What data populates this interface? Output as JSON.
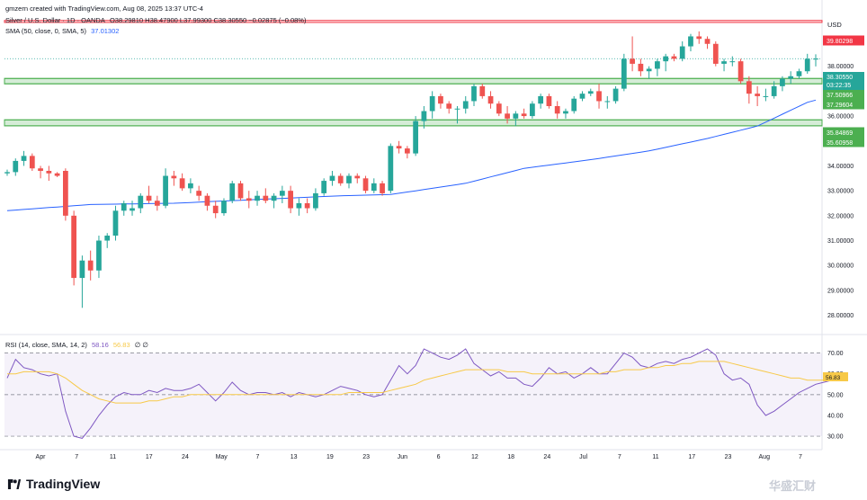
{
  "header": {
    "credit": "gmzern created with TradingView.com, Aug 08, 2025 13:37 UTC-4",
    "symbol": "Silver / U.S. Dollar · 1D · OANDA",
    "ohlc": "O38.29810 H38.47900 L37.99300 C38.30550 −0.02875 (−0.08%)",
    "sma": "SMA (50, close, 0, SMA, 5)",
    "sma_value": "37.01302",
    "rsi": "RSI (14, close, SMA, 14, 2)",
    "rsi_value": "58.16",
    "rsi_ma_value": "56.83",
    "rsi_extra": "∅ ∅"
  },
  "brand": {
    "name": "TradingView",
    "watermark": "华盛汇财"
  },
  "colors": {
    "up": "#26a69a",
    "down": "#ef5350",
    "sma": "#2962ff",
    "rsi": "#7e57c2",
    "rsi_ma": "#f7c948",
    "resistance": "#f23645",
    "support": "#4caf50"
  },
  "chart_data": [
    {
      "type": "candlestick",
      "currency": "USD",
      "ylim": [
        27.3,
        40.3
      ],
      "y_ticks": [
        "39.00000",
        "38.00000",
        "36.00000",
        "35.00000",
        "34.00000",
        "33.00000",
        "32.00000",
        "31.00000",
        "30.00000",
        "29.00000",
        "28.00000"
      ],
      "x_ticks": [
        "Apr",
        "7",
        "11",
        "17",
        "24",
        "May",
        "7",
        "13",
        "19",
        "23",
        "Jun",
        "6",
        "12",
        "18",
        "24",
        "Jul",
        "7",
        "11",
        "17",
        "23",
        "Aug",
        "7"
      ],
      "levels": [
        {
          "label": "39.80298",
          "kind": "resistance",
          "from": 39.76,
          "to": 39.84
        },
        {
          "label": "37.50966",
          "kind": "support",
          "from": 37.29604,
          "to": 37.50966
        },
        {
          "label": "37.29604",
          "kind": "support",
          "from": 37.29604,
          "to": 37.50966
        },
        {
          "label": "35.84869",
          "kind": "support",
          "from": 35.60958,
          "to": 35.84869
        },
        {
          "label": "35.60958",
          "kind": "support",
          "from": 35.60958,
          "to": 35.84869
        }
      ],
      "last_price": "38.30550",
      "countdown": "03:22:35",
      "candles": [
        [
          33.7,
          33.85,
          33.6,
          33.75
        ],
        [
          33.75,
          34.3,
          33.6,
          34.2
        ],
        [
          34.2,
          34.6,
          34.0,
          34.4
        ],
        [
          34.4,
          34.5,
          33.8,
          33.9
        ],
        [
          33.9,
          34.0,
          33.5,
          33.8
        ],
        [
          33.8,
          34.0,
          33.4,
          33.7
        ],
        [
          33.7,
          33.75,
          33.55,
          33.6
        ],
        [
          33.8,
          33.9,
          31.8,
          32.0
        ],
        [
          32.0,
          32.2,
          29.2,
          29.5
        ],
        [
          29.5,
          30.4,
          28.3,
          30.2
        ],
        [
          30.2,
          30.6,
          29.4,
          29.8
        ],
        [
          29.8,
          31.2,
          29.5,
          31.0
        ],
        [
          31.0,
          31.3,
          30.7,
          31.2
        ],
        [
          31.2,
          32.4,
          31.0,
          32.2
        ],
        [
          32.2,
          32.6,
          32.0,
          32.5
        ],
        [
          32.2,
          32.6,
          32.0,
          32.3
        ],
        [
          32.3,
          32.9,
          32.1,
          32.8
        ],
        [
          32.8,
          33.2,
          32.5,
          32.6
        ],
        [
          32.6,
          32.8,
          32.2,
          32.4
        ],
        [
          32.4,
          33.9,
          32.3,
          33.6
        ],
        [
          33.6,
          33.8,
          33.2,
          33.5
        ],
        [
          33.5,
          33.7,
          33.0,
          33.1
        ],
        [
          33.1,
          33.5,
          32.9,
          33.3
        ],
        [
          33.0,
          33.2,
          32.6,
          32.8
        ],
        [
          32.8,
          32.9,
          32.2,
          32.4
        ],
        [
          32.4,
          32.6,
          31.9,
          32.1
        ],
        [
          32.1,
          32.7,
          32.0,
          32.6
        ],
        [
          32.6,
          33.4,
          32.5,
          33.3
        ],
        [
          33.3,
          33.4,
          32.6,
          32.7
        ],
        [
          32.7,
          33.0,
          32.3,
          32.6
        ],
        [
          32.6,
          33.0,
          32.4,
          32.8
        ],
        [
          32.8,
          33.1,
          32.5,
          32.6
        ],
        [
          32.6,
          32.9,
          32.3,
          32.8
        ],
        [
          32.8,
          33.2,
          32.5,
          33.0
        ],
        [
          33.0,
          33.2,
          32.1,
          32.3
        ],
        [
          32.3,
          32.7,
          32.0,
          32.5
        ],
        [
          32.5,
          32.7,
          32.1,
          32.3
        ],
        [
          32.3,
          33.1,
          32.2,
          32.9
        ],
        [
          32.9,
          33.5,
          32.8,
          33.4
        ],
        [
          33.4,
          33.8,
          33.2,
          33.6
        ],
        [
          33.6,
          33.7,
          33.2,
          33.3
        ],
        [
          33.3,
          33.7,
          33.1,
          33.6
        ],
        [
          33.6,
          33.7,
          33.3,
          33.5
        ],
        [
          33.5,
          33.6,
          32.9,
          33.0
        ],
        [
          33.0,
          33.5,
          32.9,
          33.3
        ],
        [
          33.3,
          33.4,
          32.8,
          32.9
        ],
        [
          33.0,
          34.9,
          32.9,
          34.8
        ],
        [
          34.8,
          35.0,
          34.5,
          34.7
        ],
        [
          34.7,
          34.8,
          34.3,
          34.5
        ],
        [
          34.5,
          36.0,
          34.4,
          35.8
        ],
        [
          35.8,
          36.4,
          35.5,
          36.2
        ],
        [
          36.2,
          37.0,
          35.9,
          36.8
        ],
        [
          36.8,
          36.9,
          36.3,
          36.5
        ],
        [
          36.5,
          36.6,
          36.1,
          36.3
        ],
        [
          36.3,
          36.4,
          35.7,
          36.3
        ],
        [
          36.3,
          36.8,
          36.1,
          36.6
        ],
        [
          36.6,
          37.3,
          36.4,
          37.2
        ],
        [
          37.2,
          37.3,
          36.7,
          36.8
        ],
        [
          36.8,
          37.0,
          36.3,
          36.5
        ],
        [
          36.5,
          36.6,
          36.0,
          36.1
        ],
        [
          36.1,
          36.4,
          35.7,
          35.9
        ],
        [
          35.9,
          36.2,
          35.6,
          36.1
        ],
        [
          36.1,
          36.3,
          35.9,
          36.0
        ],
        [
          36.0,
          36.6,
          35.9,
          36.5
        ],
        [
          36.5,
          36.9,
          36.3,
          36.8
        ],
        [
          36.8,
          36.9,
          36.3,
          36.4
        ],
        [
          36.4,
          36.6,
          35.9,
          36.1
        ],
        [
          36.1,
          36.3,
          35.9,
          36.2
        ],
        [
          36.2,
          36.8,
          36.1,
          36.7
        ],
        [
          36.7,
          37.0,
          36.6,
          36.9
        ],
        [
          36.9,
          37.1,
          36.8,
          37.0
        ],
        [
          37.0,
          37.3,
          36.3,
          36.6
        ],
        [
          36.6,
          36.8,
          36.3,
          36.6
        ],
        [
          36.6,
          37.2,
          36.5,
          37.1
        ],
        [
          37.1,
          38.5,
          37.0,
          38.3
        ],
        [
          38.3,
          39.2,
          37.8,
          38.1
        ],
        [
          38.1,
          38.3,
          37.6,
          37.8
        ],
        [
          37.8,
          38.0,
          37.5,
          37.9
        ],
        [
          37.9,
          38.3,
          37.6,
          38.2
        ],
        [
          38.2,
          38.5,
          37.8,
          38.4
        ],
        [
          38.4,
          38.5,
          38.2,
          38.3
        ],
        [
          38.3,
          39.0,
          38.2,
          38.8
        ],
        [
          38.8,
          39.3,
          38.6,
          39.2
        ],
        [
          39.2,
          39.4,
          38.9,
          39.1
        ],
        [
          39.1,
          39.2,
          38.7,
          38.9
        ],
        [
          38.9,
          39.0,
          38.0,
          38.1
        ],
        [
          38.1,
          38.3,
          37.8,
          38.2
        ],
        [
          38.2,
          38.4,
          38.0,
          38.2
        ],
        [
          38.2,
          38.3,
          37.3,
          37.4
        ],
        [
          37.4,
          37.6,
          36.5,
          36.9
        ],
        [
          36.9,
          37.2,
          36.4,
          36.8
        ],
        [
          36.8,
          37.1,
          36.6,
          36.8
        ],
        [
          36.8,
          37.4,
          36.7,
          37.2
        ],
        [
          37.2,
          37.6,
          37.0,
          37.5
        ],
        [
          37.5,
          37.8,
          37.3,
          37.6
        ],
        [
          37.6,
          37.9,
          37.5,
          37.8
        ],
        [
          37.8,
          38.5,
          37.7,
          38.3
        ],
        [
          38.2981,
          38.479,
          37.993,
          38.3055
        ]
      ],
      "sma50_approx": [
        {
          "x": 0,
          "y": 32.2
        },
        {
          "x": 10,
          "y": 32.45
        },
        {
          "x": 20,
          "y": 32.5
        },
        {
          "x": 30,
          "y": 32.65
        },
        {
          "x": 40,
          "y": 32.8
        },
        {
          "x": 46,
          "y": 32.85
        },
        {
          "x": 55,
          "y": 33.3
        },
        {
          "x": 62,
          "y": 33.9
        },
        {
          "x": 70,
          "y": 34.25
        },
        {
          "x": 77,
          "y": 34.6
        },
        {
          "x": 84,
          "y": 35.1
        },
        {
          "x": 90,
          "y": 35.6
        },
        {
          "x": 96,
          "y": 36.55
        },
        {
          "x": 101,
          "y": 37.01
        }
      ]
    },
    {
      "type": "line",
      "title": "RSI (14, close, SMA, 14, 2)",
      "ylim": [
        27,
        72
      ],
      "y_ticks": [
        "70.00",
        "60.00",
        "50.00",
        "40.00",
        "30.00"
      ],
      "bands": [
        30,
        50,
        70
      ],
      "series": [
        {
          "values": [
            58,
            67,
            63,
            62,
            60,
            59,
            60,
            42,
            30,
            29,
            34,
            40,
            45,
            49,
            51,
            50,
            50,
            52,
            51,
            53,
            52,
            52,
            53,
            55,
            51,
            47,
            51,
            56,
            52,
            50,
            51,
            51,
            50,
            51,
            49,
            51,
            50,
            49,
            50,
            52,
            54,
            53,
            52,
            50,
            49,
            50,
            57,
            64,
            60,
            64,
            72,
            70,
            68,
            67,
            69,
            72,
            65,
            62,
            59,
            61,
            58,
            58,
            55,
            54,
            58,
            63,
            60,
            61,
            58,
            60,
            63,
            60,
            60,
            65,
            70,
            68,
            64,
            63,
            65,
            66,
            65,
            67,
            68,
            70,
            72,
            69,
            60,
            57,
            58,
            55,
            45,
            40,
            42,
            45,
            48,
            51,
            53,
            55,
            56,
            57,
            58.16
          ]
        },
        {
          "values": [
            60,
            60,
            61,
            61,
            61,
            61,
            60,
            58,
            55,
            52,
            50,
            48,
            47,
            46,
            46,
            46,
            46,
            47,
            47,
            48,
            49,
            49,
            50,
            50,
            50,
            50,
            50,
            50,
            50,
            50,
            50,
            50,
            50,
            50,
            50,
            50,
            50,
            50,
            50,
            50,
            50,
            51,
            51,
            51,
            51,
            51,
            52,
            53,
            54,
            55,
            57,
            58,
            59,
            60,
            61,
            62,
            62,
            62,
            62,
            62,
            61,
            61,
            61,
            60,
            60,
            60,
            60,
            60,
            60,
            60,
            60,
            60,
            61,
            61,
            62,
            62,
            62,
            63,
            63,
            64,
            64,
            65,
            65,
            66,
            66,
            66,
            66,
            65,
            64,
            63,
            62,
            61,
            60,
            59,
            58,
            58,
            57,
            57,
            57,
            56.9,
            56.83
          ]
        }
      ]
    }
  ]
}
